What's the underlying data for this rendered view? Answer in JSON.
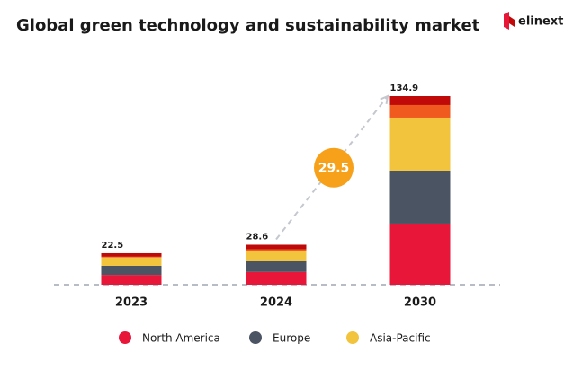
{
  "logo": "elinext",
  "chart_data": {
    "type": "stacked-bar",
    "title": "Global green technology and sustainability market",
    "categories": [
      "2023",
      "2024",
      "2030"
    ],
    "series": [
      {
        "name": "North America",
        "color": "#e8173a",
        "values": [
          7.0,
          9.1,
          43.7
        ]
      },
      {
        "name": "Europe",
        "color": "#4a5463",
        "values": [
          6.5,
          7.6,
          37.9
        ]
      },
      {
        "name": "Asia-Pacific",
        "color": "#f2c43d",
        "values": [
          6.0,
          7.6,
          37.9
        ]
      },
      {
        "color": "#f05a1e",
        "values": [
          0.5,
          1.0,
          9.0
        ]
      },
      {
        "color": "#c00a0a",
        "values": [
          2.5,
          3.3,
          6.4
        ]
      }
    ],
    "totals": [
      22.5,
      28.6,
      134.9
    ],
    "annotation": 29.5,
    "annotation_color": "#f7a11a"
  }
}
